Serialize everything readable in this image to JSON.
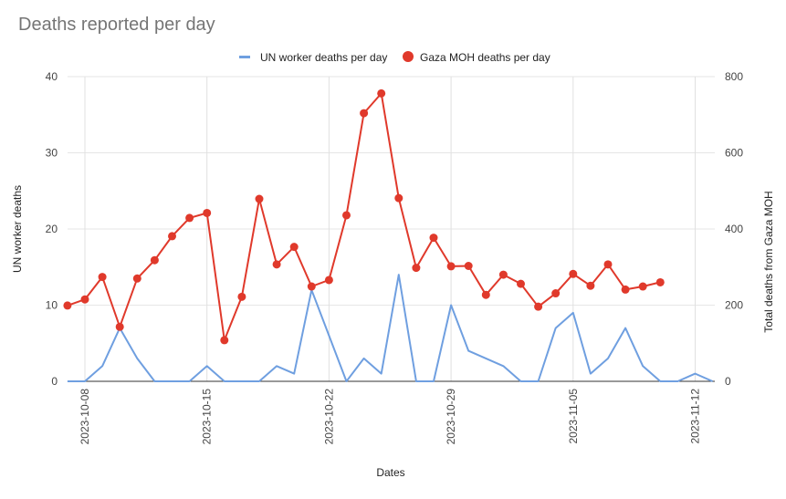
{
  "chart_data": {
    "type": "line",
    "title": "Deaths reported per day",
    "xlabel": "Dates",
    "ylabel_left": "UN worker deaths",
    "ylabel_right": "Total deaths from Gaza MOH",
    "ylim_left": [
      0,
      40
    ],
    "ylim_right": [
      0,
      800
    ],
    "yticks_left": [
      "0",
      "10",
      "20",
      "30",
      "40"
    ],
    "yticks_right": [
      "0",
      "200",
      "400",
      "600",
      "800"
    ],
    "xticks": [
      "2023-10-08",
      "2023-10-15",
      "2023-10-22",
      "2023-10-29",
      "2023-11-05",
      "2023-11-12"
    ],
    "grid": "vertical",
    "legend_position": "top",
    "x_start": "2023-10-08",
    "series": [
      {
        "name": "UN worker deaths per day",
        "axis": "left",
        "color": "#6f9fe0",
        "style": "line",
        "start_offset": -1,
        "values": [
          0,
          0,
          2,
          7,
          3,
          0,
          0,
          0,
          2,
          0,
          0,
          0,
          2,
          1,
          12,
          6,
          0,
          3,
          1,
          14,
          0,
          0,
          10,
          4,
          3,
          2,
          0,
          0,
          7,
          9,
          1,
          3,
          7,
          2,
          0,
          0,
          1,
          0
        ]
      },
      {
        "name": "Gaza MOH deaths per day",
        "axis": "right",
        "color": "#e0392b",
        "style": "line-markers",
        "start_offset": -1,
        "values": [
          199,
          215,
          274,
          143,
          270,
          318,
          381,
          429,
          442,
          108,
          222,
          479,
          307,
          353,
          249,
          266,
          436,
          704,
          756,
          481,
          298,
          377,
          302,
          303,
          227,
          280,
          256,
          196,
          231,
          282,
          251,
          307,
          241,
          249,
          260
        ]
      }
    ]
  }
}
